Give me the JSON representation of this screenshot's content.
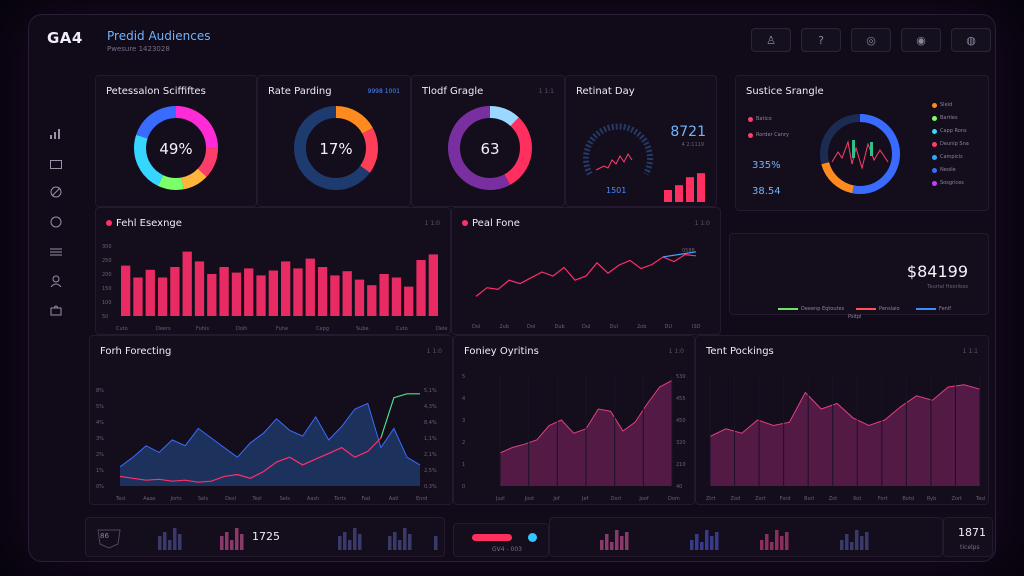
{
  "app": {
    "logo": "GA4",
    "logo_sub": "",
    "title": "Predid Audiences",
    "subtitle": "Pwesure 1423028"
  },
  "header_icons": [
    "bell-icon",
    "help-icon",
    "globe-icon",
    "settings-icon",
    "user-icon"
  ],
  "sidebar_icons": [
    "bar-chart-icon",
    "folder-icon",
    "target-icon",
    "circle-icon",
    "list-icon",
    "people-icon",
    "bag-icon"
  ],
  "kpis": [
    {
      "title": "Petessalon Sciffiftes",
      "value": "49%",
      "meta": "",
      "segments": [
        {
          "color": "#ff2bd6",
          "frac": 0.25
        },
        {
          "color": "#ff3d6a",
          "frac": 0.12
        },
        {
          "color": "#ffb53c",
          "frac": 0.1
        },
        {
          "color": "#7bff6a",
          "frac": 0.1
        },
        {
          "color": "#35d6ff",
          "frac": 0.23
        },
        {
          "color": "#3a6bff",
          "frac": 0.2
        }
      ]
    },
    {
      "title": "Rate Parding",
      "value": "17%",
      "meta": "9998 1001",
      "segments": [
        {
          "color": "#ff8a1e",
          "frac": 0.17
        },
        {
          "color": "#ff3f5a",
          "frac": 0.18
        },
        {
          "color": "#1d3b6e",
          "frac": 0.65
        }
      ]
    },
    {
      "title": "Tlodf Gragle",
      "value": "63",
      "meta": "1 1:1",
      "segments": [
        {
          "color": "#9ad8ff",
          "frac": 0.12
        },
        {
          "color": "#ff2f5f",
          "frac": 0.3
        },
        {
          "color": "#7a2fa0",
          "frac": 0.58
        }
      ]
    },
    {
      "title": "Retinat Day",
      "value": "8721",
      "value_sub": "4 2:1119",
      "bottom": "1501",
      "meta": ""
    }
  ],
  "kpi_day_bars": [
    0.3,
    0.42,
    0.62,
    0.72
  ],
  "source_panel": {
    "title": "Sustice Srangle",
    "left_items": [
      "Batico",
      "Rorder Canry"
    ],
    "left_colors": [
      "#ff3f6a",
      "#ff3f6a"
    ],
    "left_values": [
      "335%",
      "38.54"
    ],
    "right_items": [
      "Sleid",
      "Barties",
      "Capp Rons",
      "Deunip Sna",
      "Campicis",
      "Neoile",
      "Sosgrices"
    ],
    "right_colors": [
      "#ff8a1e",
      "#7bff6a",
      "#35d6ff",
      "#ff3f6a",
      "#35a6ff",
      "#3a6bff",
      "#c23fff"
    ]
  },
  "fehl_exchange": {
    "title": "Fehl Esexnge",
    "meta": "1 1:0",
    "y_ticks": [
      "300",
      "250",
      "200",
      "150",
      "100",
      "50"
    ],
    "x_labels": [
      "Cuto",
      "Deers",
      "Fuhis",
      "Dolh",
      "Fuhe",
      "Cepg",
      "Sube",
      "Cuto",
      "Dele"
    ],
    "values": [
      72,
      55,
      66,
      55,
      70,
      92,
      78,
      60,
      70,
      62,
      68,
      58,
      65,
      78,
      68,
      82,
      70,
      58,
      64,
      52,
      44,
      60,
      55,
      42,
      80,
      88
    ],
    "color": "#ff2f6a"
  },
  "peal_fone": {
    "title": "Peal Fone",
    "meta": "1 1:0",
    "end_label": "0588",
    "x_labels": [
      "Dol",
      "2ub",
      "Dol",
      "Dub",
      "Dul",
      "Dul",
      "2ob",
      "DU",
      "ISD"
    ],
    "values": [
      20,
      35,
      32,
      48,
      42,
      52,
      62,
      55,
      70,
      48,
      55,
      78,
      60,
      74,
      82,
      68,
      75,
      88,
      80,
      92,
      90
    ],
    "end_line": "#4aa8ff"
  },
  "total": {
    "value": "$84199",
    "sub": "Teurtal Heoribes",
    "legend": [
      {
        "label": "Deeenp Eqtoutes",
        "color": "#6fe06a"
      },
      {
        "label": "Penslaio",
        "color": "#ff4f5a"
      },
      {
        "label": "Fenlf",
        "color": "#3a8cff"
      }
    ],
    "legend_sub": "Psitpl"
  },
  "forecasting": {
    "title": "Forh Forecting",
    "meta": "1 1:0",
    "y_left": [
      "8%",
      "5%",
      "4%",
      "3%",
      "2%",
      "1%",
      "0%"
    ],
    "y_right": [
      "5,1%",
      "4,3%",
      "8,4%",
      "1,1%",
      "2,1%",
      "2,5%",
      "0,3%"
    ],
    "x_labels": [
      "Tesl",
      "Aaas",
      "Jorts",
      "Sels",
      "Desl",
      "Tesl",
      "Sels",
      "Aash",
      "Terts",
      "Fad",
      "Aatl",
      "Enrd"
    ],
    "area": [
      20,
      30,
      42,
      35,
      48,
      42,
      60,
      50,
      40,
      30,
      45,
      55,
      70,
      58,
      52,
      72,
      48,
      62,
      80,
      86,
      40,
      60,
      30,
      22
    ],
    "line": [
      10,
      8,
      6,
      7,
      5,
      6,
      4,
      5,
      10,
      12,
      8,
      15,
      25,
      30,
      22,
      28,
      34,
      40,
      30,
      36,
      50,
      92,
      96,
      96
    ],
    "line2_tail": true
  },
  "forty_outline": {
    "title": "Foniey Oyritins",
    "meta": "1 1:0",
    "y_left": [
      "5",
      "4",
      "3",
      "2",
      "1",
      "0"
    ],
    "y_right": [
      "530",
      "455",
      "450",
      "320",
      "210",
      "40"
    ],
    "x_labels": [
      "Juzl",
      "Joot",
      "Jof",
      "Jef",
      "Dorl",
      "Joof",
      "Dom"
    ],
    "values": [
      30,
      35,
      38,
      42,
      55,
      60,
      48,
      52,
      70,
      68,
      50,
      58,
      75,
      90,
      96
    ]
  },
  "tent_packings": {
    "title": "Tent Pockings",
    "meta": "1 1:1",
    "x_labels": [
      "Ztrt",
      "Zod",
      "Zort",
      "Ford",
      "Borl",
      "Zot",
      "Kot",
      "Fort",
      "Botd",
      "Ryb",
      "Zort",
      "Tesl"
    ],
    "values": [
      45,
      52,
      48,
      60,
      55,
      58,
      85,
      70,
      75,
      62,
      55,
      60,
      72,
      82,
      78,
      90,
      92,
      88
    ]
  },
  "footer": {
    "left_num": "1725",
    "left_badge": "86",
    "mid_label": "GV4 - 003",
    "right_num": "1871",
    "right_sub": "ticelps"
  }
}
